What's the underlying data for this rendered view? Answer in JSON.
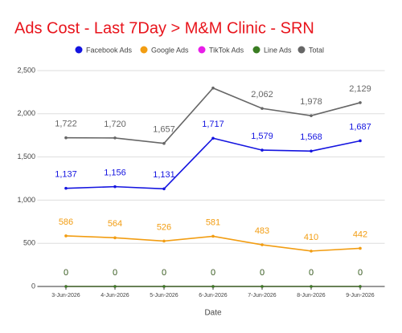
{
  "chart_data": {
    "type": "line",
    "title": "Ads Cost - Last 7Day > M&M Clinic - SRN",
    "x_label": "Date",
    "categories": [
      "3-Jun-2026",
      "4-Jun-2026",
      "5-Jun-2026",
      "6-Jun-2026",
      "7-Jun-2026",
      "8-Jun-2026",
      "9-Jun-2026"
    ],
    "series": [
      {
        "name": "Facebook Ads",
        "color": "#1414e0",
        "values": [
          1137,
          1156,
          1131,
          1717,
          1579,
          1568,
          1687
        ],
        "value_labels": [
          "1,137",
          "1,156",
          "1,131",
          "1,717",
          "1,579",
          "1,568",
          "1,687"
        ]
      },
      {
        "name": "Google Ads",
        "color": "#f29d12",
        "values": [
          586,
          564,
          526,
          581,
          483,
          410,
          442
        ]
      },
      {
        "name": "TikTok Ads",
        "color": "#e81ee8",
        "values": [
          0,
          0,
          0,
          0,
          0,
          0,
          0
        ]
      },
      {
        "name": "Line Ads",
        "color": "#3a7d22",
        "values": [
          0,
          0,
          0,
          0,
          0,
          0,
          0
        ]
      },
      {
        "name": "Total",
        "color": "#666666",
        "values": [
          1722,
          1720,
          1657,
          2298,
          2062,
          1978,
          2129
        ],
        "value_labels": [
          "1,722",
          "1,720",
          "1,657",
          null,
          "2,062",
          "1,978",
          "2,129"
        ]
      }
    ],
    "ylim": [
      0,
      2500
    ],
    "yticks": [
      0,
      500,
      {
        "value": 1000,
        "label": "1,000"
      },
      {
        "value": 1500,
        "label": "1,500"
      },
      {
        "value": 2000,
        "label": "2,000"
      },
      {
        "value": 2500,
        "label": "2,500"
      }
    ],
    "grid": true,
    "legend": "top"
  }
}
